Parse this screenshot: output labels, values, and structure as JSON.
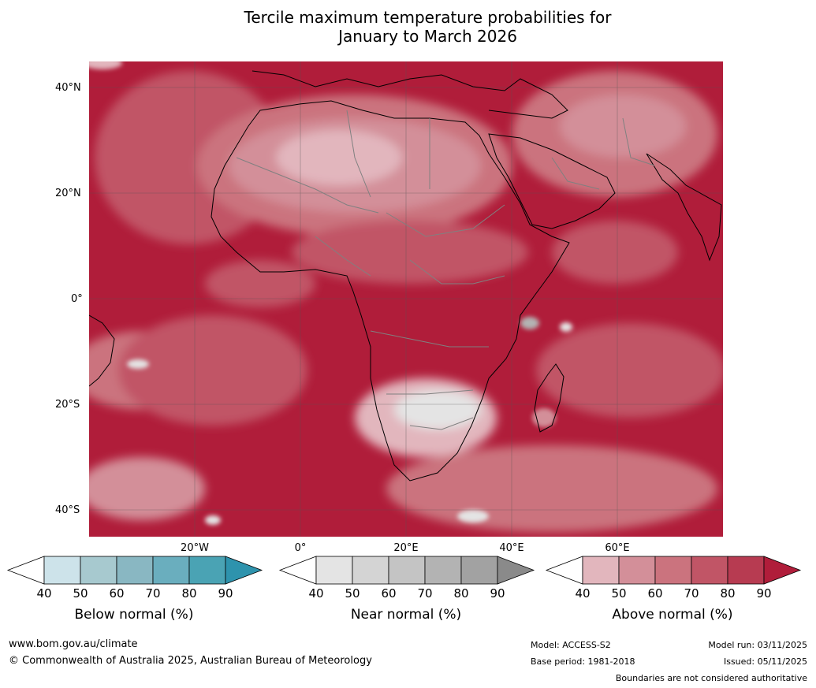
{
  "title_line1": "Tercile maximum temperature probabilities for",
  "title_line2": "January to March 2026",
  "lat_labels": [
    "40°N",
    "20°N",
    "0°",
    "20°S",
    "40°S"
  ],
  "lon_labels": [
    "20°W",
    "0°",
    "20°E",
    "40°E",
    "60°E"
  ],
  "colorbars": [
    {
      "name": "below",
      "title": "Below normal (%)",
      "ticks": [
        "40",
        "50",
        "60",
        "70",
        "80",
        "90"
      ],
      "colors": [
        "#ffffff",
        "#cde3ea",
        "#a7c9cf",
        "#89b7c2",
        "#6aaebe",
        "#4aa3b4",
        "#2e93ad"
      ]
    },
    {
      "name": "near",
      "title": "Near normal (%)",
      "ticks": [
        "40",
        "50",
        "60",
        "70",
        "80",
        "90"
      ],
      "colors": [
        "#ffffff",
        "#e4e4e4",
        "#d4d4d4",
        "#c4c4c4",
        "#b3b3b3",
        "#a2a2a2",
        "#8a8a8a"
      ]
    },
    {
      "name": "above",
      "title": "Above normal (%)",
      "ticks": [
        "40",
        "50",
        "60",
        "70",
        "80",
        "90"
      ],
      "colors": [
        "#ffffff",
        "#e2b6bd",
        "#d38f99",
        "#cb737e",
        "#c15566",
        "#b73b51",
        "#b01d3a"
      ]
    }
  ],
  "footer": {
    "url": "www.bom.gov.au/climate",
    "copyright": "© Commonwealth of Australia 2025, Australian Bureau of Meteorology",
    "model": "Model: ACCESS-S2",
    "base_period": "Base period: 1981-2018",
    "model_run": "Model run: 03/11/2025",
    "issued": "Issued: 05/11/2025",
    "boundaries": "Boundaries are not considered authoritative"
  }
}
